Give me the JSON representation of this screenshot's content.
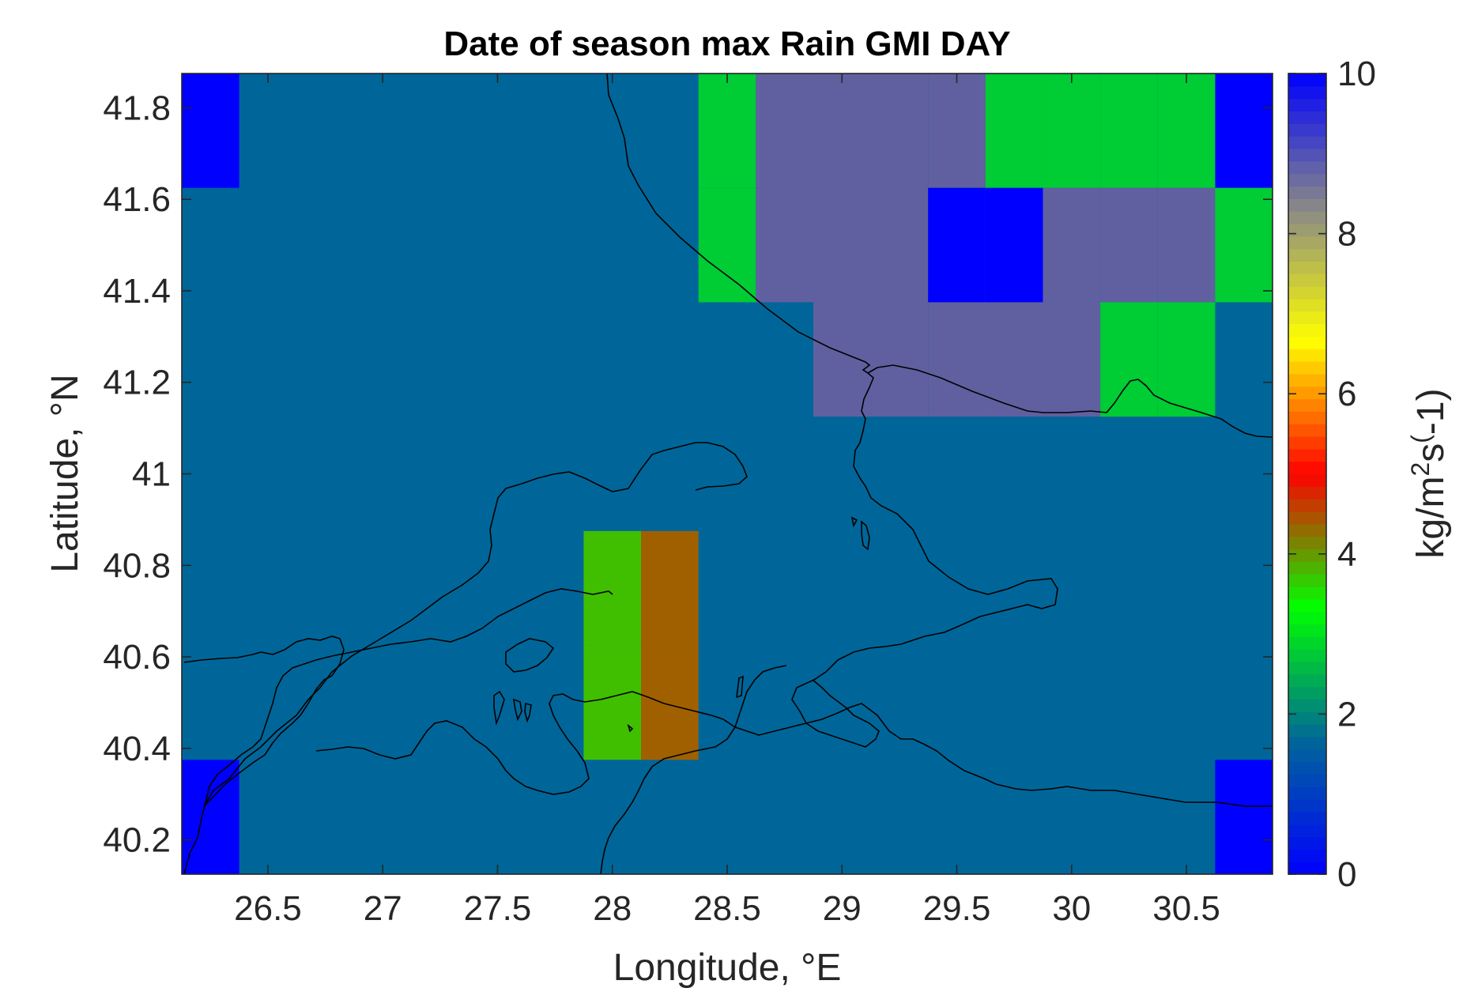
{
  "chart_data": {
    "type": "heatmap",
    "title": "Date of season max Rain GMI DAY",
    "xlabel": "Longitude, °E",
    "ylabel": "Latitude, °N",
    "xlim": [
      26.125,
      30.875
    ],
    "ylim": [
      40.125,
      41.875
    ],
    "xticks": [
      26.5,
      27,
      27.5,
      28,
      28.5,
      29,
      29.5,
      30,
      30.5
    ],
    "xtick_labels": [
      "26.5",
      "27",
      "27.5",
      "28",
      "28.5",
      "29",
      "29.5",
      "30",
      "30.5"
    ],
    "yticks": [
      40.2,
      40.4,
      40.6,
      40.8,
      41,
      41.2,
      41.4,
      41.6,
      41.8
    ],
    "ytick_labels": [
      "40.2",
      "40.4",
      "40.6",
      "40.8",
      "41",
      "41.2",
      "41.4",
      "41.6",
      "41.8"
    ],
    "cell_size_deg": 0.25,
    "background_value": 1.3,
    "cells": [
      {
        "lon": 26.25,
        "lat": 41.75,
        "value": 0
      },
      {
        "lon": 26.25,
        "lat": 40.25,
        "value": 0
      },
      {
        "lon": 30.75,
        "lat": 41.75,
        "value": 0
      },
      {
        "lon": 30.75,
        "lat": 40.25,
        "value": 0
      },
      {
        "lon": 28.5,
        "lat": 41.75,
        "value": 2
      },
      {
        "lon": 28.5,
        "lat": 41.5,
        "value": 2
      },
      {
        "lon": 28.75,
        "lat": 41.75,
        "value": 9
      },
      {
        "lon": 29.0,
        "lat": 41.75,
        "value": 9
      },
      {
        "lon": 29.25,
        "lat": 41.75,
        "value": 9
      },
      {
        "lon": 29.5,
        "lat": 41.75,
        "value": 9
      },
      {
        "lon": 29.75,
        "lat": 41.75,
        "value": 2
      },
      {
        "lon": 30.0,
        "lat": 41.75,
        "value": 2
      },
      {
        "lon": 30.25,
        "lat": 41.75,
        "value": 2
      },
      {
        "lon": 30.5,
        "lat": 41.75,
        "value": 2
      },
      {
        "lon": 28.75,
        "lat": 41.5,
        "value": 9
      },
      {
        "lon": 29.0,
        "lat": 41.5,
        "value": 9
      },
      {
        "lon": 29.25,
        "lat": 41.5,
        "value": 9
      },
      {
        "lon": 29.5,
        "lat": 41.5,
        "value": 0
      },
      {
        "lon": 29.75,
        "lat": 41.5,
        "value": 0
      },
      {
        "lon": 30.0,
        "lat": 41.5,
        "value": 9
      },
      {
        "lon": 30.25,
        "lat": 41.5,
        "value": 9
      },
      {
        "lon": 30.5,
        "lat": 41.5,
        "value": 9
      },
      {
        "lon": 30.75,
        "lat": 41.5,
        "value": 2
      },
      {
        "lon": 29.0,
        "lat": 41.25,
        "value": 9
      },
      {
        "lon": 29.25,
        "lat": 41.25,
        "value": 9
      },
      {
        "lon": 29.5,
        "lat": 41.25,
        "value": 9
      },
      {
        "lon": 29.75,
        "lat": 41.25,
        "value": 9
      },
      {
        "lon": 30.0,
        "lat": 41.25,
        "value": 9
      },
      {
        "lon": 30.25,
        "lat": 41.25,
        "value": 2
      },
      {
        "lon": 30.5,
        "lat": 41.25,
        "value": 2
      },
      {
        "lon": 28.0,
        "lat": 40.75,
        "value": 3
      },
      {
        "lon": 28.0,
        "lat": 40.5,
        "value": 3
      },
      {
        "lon": 28.25,
        "lat": 40.75,
        "value": 4
      },
      {
        "lon": 28.25,
        "lat": 40.5,
        "value": 4
      }
    ],
    "colorbar": {
      "label": "kg/m²s(-1)",
      "label_parts": [
        "kg/m",
        "2",
        "s",
        "(",
        "-1)"
      ],
      "clim": [
        0,
        10
      ],
      "ticks": [
        0,
        2,
        4,
        6,
        8,
        10
      ],
      "tick_labels": [
        "0",
        "2",
        "4",
        "6",
        "8",
        "10"
      ],
      "colormap": [
        "#0000ff",
        "#006699",
        "#00ff00",
        "#ff0000",
        "#ffff00",
        "#888888",
        "#0000ff"
      ]
    },
    "grid": false,
    "coastline": true
  },
  "colors": {
    "background_cell": "#006699",
    "value_0": "#0000ff",
    "value_2": "#00cc33",
    "value_3": "#40bf00",
    "value_4": "#a06000",
    "value_9": "#6060a0",
    "coastline": "#000000"
  }
}
